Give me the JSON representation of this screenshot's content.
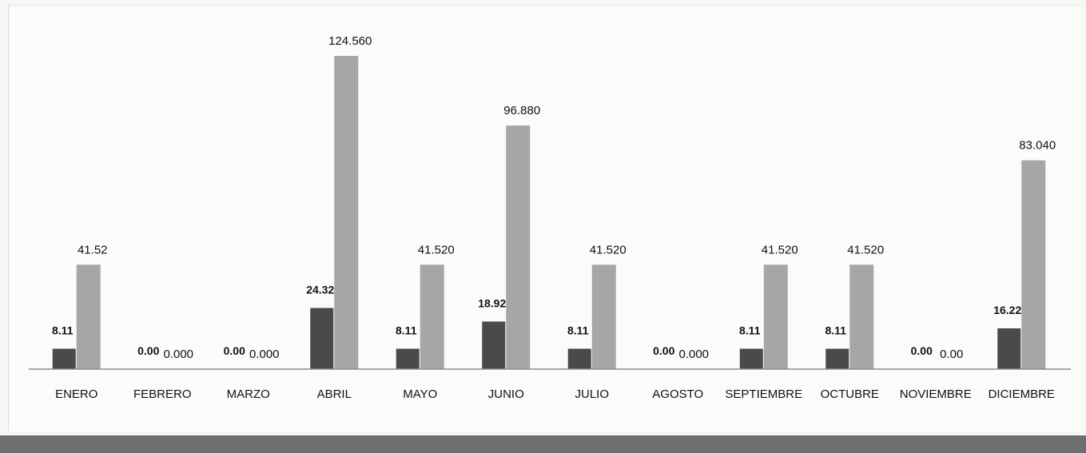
{
  "chart_data": {
    "type": "bar",
    "title": "",
    "xlabel": "",
    "ylabel": "",
    "ylim": [
      0,
      124.56
    ],
    "grid": false,
    "legend": "none",
    "categories": [
      "ENERO",
      "FEBRERO",
      "MARZO",
      "ABRIL",
      "MAYO",
      "JUNIO",
      "JULIO",
      "AGOSTO",
      "SEPTIEMBRE",
      "OCTUBRE",
      "NOVIEMBRE",
      "DICIEMBRE"
    ],
    "series": [
      {
        "color": "#4a4a4a",
        "values": [
          8.11,
          0.0,
          0.0,
          24.32,
          8.11,
          18.92,
          8.11,
          0.0,
          8.11,
          8.11,
          0.0,
          16.22
        ],
        "labels": [
          "8.11",
          "0.00",
          "0.00",
          "24.32",
          "8.11",
          "18.92",
          "8.11",
          "0.00",
          "8.11",
          "8.11",
          "0.00",
          "16.22"
        ]
      },
      {
        "color": "#a6a6a6",
        "values": [
          41.52,
          0.0,
          0.0,
          124.56,
          41.52,
          96.88,
          41.52,
          0.0,
          41.52,
          41.52,
          0.0,
          83.04
        ],
        "labels": [
          "41.52",
          "0.000",
          "0.000",
          "124.560",
          "41.520",
          "96.880",
          "41.520",
          "0.000",
          "41.520",
          "41.520",
          "0.00",
          "83.040"
        ]
      }
    ]
  }
}
